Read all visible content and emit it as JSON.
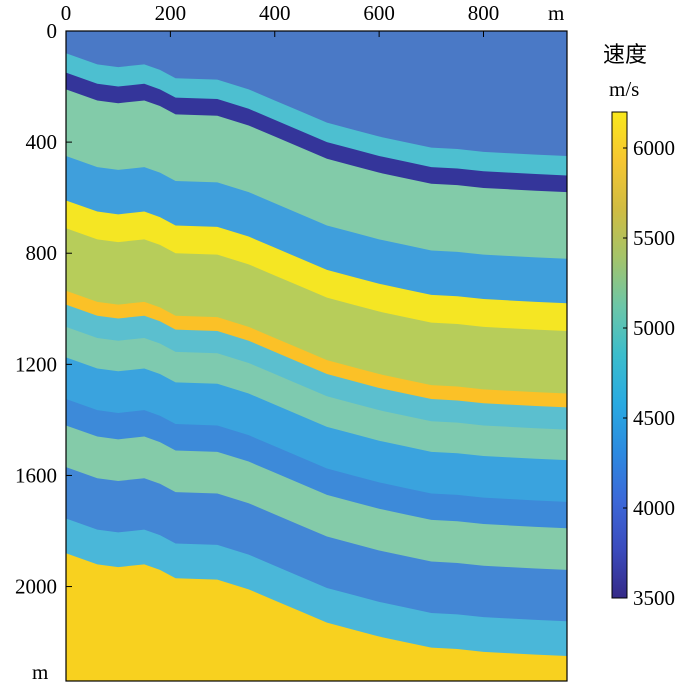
{
  "chart_data": {
    "type": "heatmap",
    "title": "",
    "x_axis": {
      "unit_label": "m",
      "ticks": [
        0,
        200,
        400,
        600,
        800
      ],
      "range": [
        0,
        960
      ]
    },
    "y_axis": {
      "unit_label": "m",
      "ticks": [
        0,
        400,
        800,
        1200,
        1600,
        2000
      ],
      "range": [
        0,
        2340
      ],
      "inverted": true
    },
    "colorbar": {
      "title": "速度",
      "unit": "m/s",
      "ticks": [
        3500,
        4000,
        4500,
        5000,
        5500,
        6000
      ],
      "range": [
        3500,
        6200
      ],
      "colors": [
        "#352a87",
        "#3b4bbd",
        "#3c68d8",
        "#2c8ae0",
        "#29aae1",
        "#3bbdcc",
        "#6cc6a8",
        "#a4c46a",
        "#d0bc42",
        "#f6c631",
        "#f9e81c"
      ]
    },
    "profile_x": [
      0,
      60,
      100,
      150,
      180,
      210,
      290,
      350,
      400,
      450,
      500,
      550,
      600,
      650,
      700,
      750,
      800,
      850,
      900,
      960
    ],
    "profile_offset_m": [
      0,
      40,
      50,
      40,
      60,
      90,
      95,
      130,
      170,
      210,
      250,
      275,
      300,
      320,
      340,
      345,
      355,
      360,
      365,
      370
    ],
    "layers": [
      {
        "top_m": 0,
        "velocity": 4050,
        "color": "#4a79c6"
      },
      {
        "top_m": 80,
        "velocity": 4650,
        "color": "#4dbfd0"
      },
      {
        "top_m": 150,
        "velocity": 3650,
        "color": "#34359a"
      },
      {
        "top_m": 210,
        "velocity": 4900,
        "color": "#82cba9"
      },
      {
        "top_m": 450,
        "velocity": 4450,
        "color": "#3f9fdc"
      },
      {
        "top_m": 610,
        "velocity": 6100,
        "color": "#f5e623"
      },
      {
        "top_m": 710,
        "velocity": 5300,
        "color": "#b7cd5a"
      },
      {
        "top_m": 935,
        "velocity": 5700,
        "color": "#fbc127"
      },
      {
        "top_m": 985,
        "velocity": 4700,
        "color": "#5bbfcf"
      },
      {
        "top_m": 1065,
        "velocity": 4850,
        "color": "#7ecaaf"
      },
      {
        "top_m": 1175,
        "velocity": 4450,
        "color": "#3aa3de"
      },
      {
        "top_m": 1325,
        "velocity": 4300,
        "color": "#3d8ad9"
      },
      {
        "top_m": 1420,
        "velocity": 4900,
        "color": "#84cba9"
      },
      {
        "top_m": 1570,
        "velocity": 4200,
        "color": "#4387d5"
      },
      {
        "top_m": 1755,
        "velocity": 4750,
        "color": "#4ab7d9"
      },
      {
        "top_m": 1880,
        "velocity": 5850,
        "color": "#f8d11f"
      }
    ]
  }
}
